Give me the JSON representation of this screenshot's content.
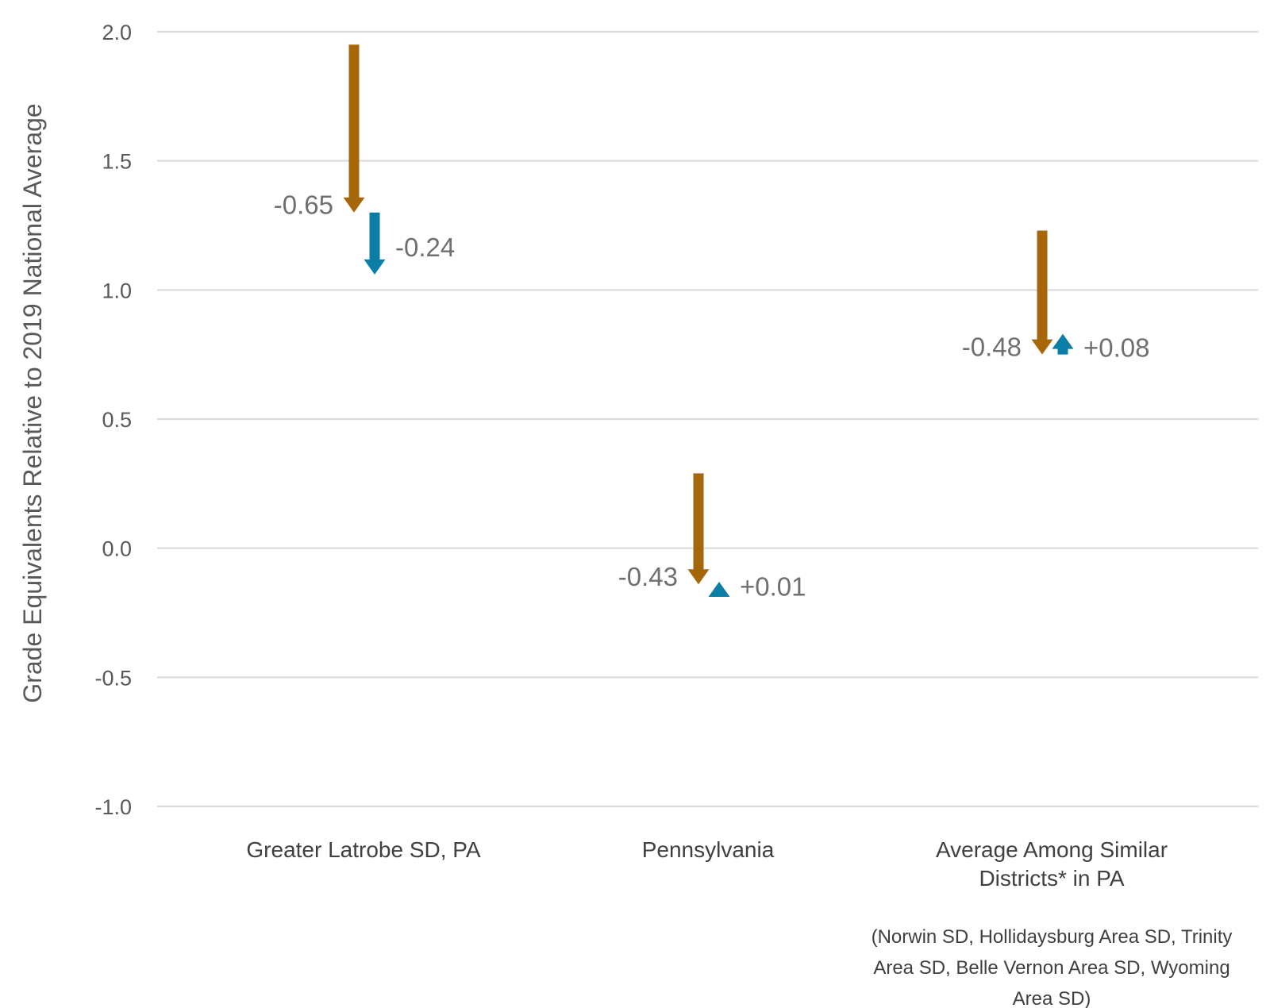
{
  "chart_data": {
    "type": "arrow",
    "ylabel": "Grade Equivalents Relative to 2019 National Average",
    "ylim": [
      -1.0,
      2.0
    ],
    "yticks": [
      2.0,
      1.5,
      1.0,
      0.5,
      0.0,
      -0.5,
      -1.0
    ],
    "ytick_labels": [
      "2.0",
      "1.5",
      "1.0",
      "0.5",
      "0.0",
      "-0.5",
      "-1.0"
    ],
    "grid": true,
    "colors": {
      "decline": "#A5670A",
      "change": "#0A7EA4",
      "grid": "#d9d9d9"
    },
    "categories": [
      {
        "label_lines": [
          "Greater Latrobe SD, PA"
        ]
      },
      {
        "label_lines": [
          "Pennsylvania"
        ]
      },
      {
        "label_lines": [
          "Average Among Similar",
          "Districts* in PA"
        ]
      }
    ],
    "series": [
      {
        "start": [
          1.95,
          0.29,
          1.23
        ],
        "change": [
          -0.65,
          -0.43,
          -0.48
        ],
        "labels": [
          "-0.65",
          "-0.43",
          "-0.48"
        ]
      },
      {
        "start": [
          1.3,
          -0.14,
          0.75
        ],
        "change": [
          -0.24,
          0.01,
          0.08
        ],
        "labels": [
          "-0.24",
          "+0.01",
          "+0.08"
        ]
      }
    ],
    "footnote_lines": [
      "(Norwin SD, Hollidaysburg Area SD, Trinity",
      "Area SD, Belle Vernon Area SD, Wyoming",
      "Area SD)"
    ]
  }
}
